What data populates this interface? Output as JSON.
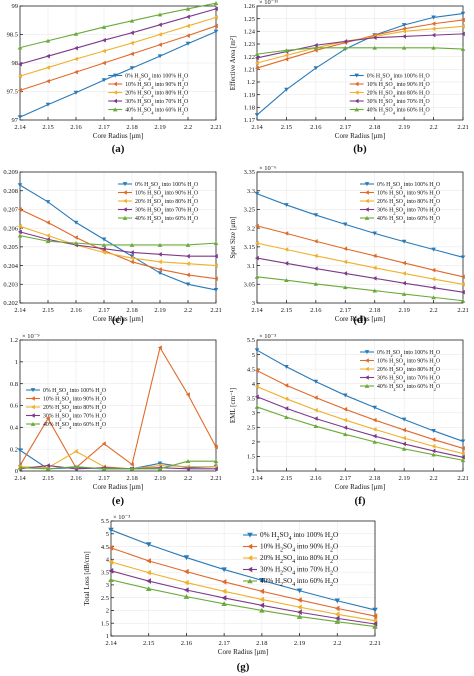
{
  "colors": [
    "#2a7ab8",
    "#e06a2a",
    "#f0b02a",
    "#7e3a8a",
    "#6aaa3a"
  ],
  "legend": [
    [
      "0% H",
      "2",
      "SO",
      "4",
      " into 100% H",
      "2",
      "O"
    ],
    [
      "10% H",
      "2",
      "SO",
      "4",
      " into 90% H",
      "2",
      "O"
    ],
    [
      "20% H",
      "2",
      "SO",
      "4",
      " into 80% H",
      "2",
      "O"
    ],
    [
      "30% H",
      "2",
      "SO",
      "4",
      " into 70% H",
      "2",
      "O"
    ],
    [
      "40% H",
      "2",
      "SO",
      "4",
      " into 60% H",
      "2",
      "O"
    ]
  ],
  "chart_data": [
    {
      "type": "line",
      "caption": "(a)",
      "xlabel": "Core Radius [μm]",
      "ylabel": "Relative Sensitivity",
      "multiplier": "",
      "xlim": [
        2.14,
        2.21
      ],
      "ylim": [
        97,
        99
      ],
      "xticks": [
        "2.14",
        "2.15",
        "2.16",
        "2.17",
        "2.18",
        "2.19",
        "2.2",
        "2.21"
      ],
      "yticks": [
        {
          "v": 97,
          "t": "97"
        },
        {
          "v": 97.5,
          "t": "97.5"
        },
        {
          "v": 98,
          "t": "98"
        },
        {
          "v": 98.5,
          "t": "98.5"
        },
        {
          "v": 99,
          "t": "99"
        }
      ],
      "legend_position": "bottom-right",
      "x": [
        2.14,
        2.15,
        2.16,
        2.17,
        2.18,
        2.19,
        2.2,
        2.21
      ],
      "series": [
        {
          "values": [
            97.05,
            97.27,
            97.48,
            97.7,
            97.91,
            98.12,
            98.34,
            98.55
          ]
        },
        {
          "values": [
            97.52,
            97.68,
            97.84,
            98.0,
            98.16,
            98.32,
            98.48,
            98.65
          ]
        },
        {
          "values": [
            97.77,
            97.92,
            98.07,
            98.21,
            98.35,
            98.5,
            98.65,
            98.8
          ]
        },
        {
          "values": [
            97.98,
            98.12,
            98.26,
            98.4,
            98.53,
            98.67,
            98.81,
            98.95
          ]
        },
        {
          "values": [
            98.27,
            98.39,
            98.51,
            98.63,
            98.74,
            98.85,
            98.95,
            99.05
          ]
        }
      ]
    },
    {
      "type": "line",
      "caption": "(b)",
      "xlabel": "Core Radius [μm]",
      "ylabel": "Effective Area [m²]",
      "multiplier": "× 10⁻¹¹",
      "xlim": [
        2.14,
        2.21
      ],
      "ylim": [
        1.17,
        1.26
      ],
      "xticks": [
        "2.14",
        "2.15",
        "2.16",
        "2.17",
        "2.18",
        "2.19",
        "2.2",
        "2.21"
      ],
      "yticks": [
        {
          "v": 1.17,
          "t": "1.17"
        },
        {
          "v": 1.18,
          "t": "1.18"
        },
        {
          "v": 1.19,
          "t": "1.19"
        },
        {
          "v": 1.2,
          "t": "1.2"
        },
        {
          "v": 1.21,
          "t": "1.21"
        },
        {
          "v": 1.22,
          "t": "1.22"
        },
        {
          "v": 1.23,
          "t": "1.23"
        },
        {
          "v": 1.24,
          "t": "1.24"
        },
        {
          "v": 1.25,
          "t": "1.25"
        },
        {
          "v": 1.26,
          "t": "1.26"
        }
      ],
      "legend_position": "bottom-right",
      "x": [
        2.14,
        2.15,
        2.16,
        2.17,
        2.18,
        2.19,
        2.2,
        2.21
      ],
      "series": [
        {
          "values": [
            1.174,
            1.194,
            1.211,
            1.226,
            1.237,
            1.245,
            1.251,
            1.254
          ]
        },
        {
          "values": [
            1.211,
            1.218,
            1.225,
            1.231,
            1.237,
            1.242,
            1.246,
            1.249
          ]
        },
        {
          "values": [
            1.215,
            1.221,
            1.227,
            1.232,
            1.236,
            1.24,
            1.242,
            1.244
          ]
        },
        {
          "values": [
            1.219,
            1.224,
            1.229,
            1.232,
            1.235,
            1.236,
            1.237,
            1.238
          ]
        },
        {
          "values": [
            1.222,
            1.225,
            1.227,
            1.227,
            1.227,
            1.227,
            1.227,
            1.226
          ]
        }
      ]
    },
    {
      "type": "line",
      "caption": "(c)",
      "xlabel": "Core Radius [μm]",
      "ylabel": "Numerical Aperture",
      "multiplier": "",
      "xlim": [
        2.14,
        2.21
      ],
      "ylim": [
        0.202,
        0.209
      ],
      "xticks": [
        "2.14",
        "2.15",
        "2.16",
        "2.17",
        "2.18",
        "2.19",
        "2.2",
        "2.21"
      ],
      "yticks": [
        {
          "v": 0.202,
          "t": "0.202"
        },
        {
          "v": 0.203,
          "t": "0.203"
        },
        {
          "v": 0.204,
          "t": "0.204"
        },
        {
          "v": 0.205,
          "t": "0.205"
        },
        {
          "v": 0.206,
          "t": "0.206"
        },
        {
          "v": 0.207,
          "t": "0.207"
        },
        {
          "v": 0.208,
          "t": "0.208"
        },
        {
          "v": 0.209,
          "t": "0.209"
        }
      ],
      "legend_position": "top-right",
      "x": [
        2.14,
        2.15,
        2.16,
        2.17,
        2.18,
        2.19,
        2.2,
        2.21
      ],
      "series": [
        {
          "values": [
            0.2083,
            0.2074,
            0.2063,
            0.2054,
            0.2045,
            0.2036,
            0.203,
            0.2027
          ]
        },
        {
          "values": [
            0.207,
            0.2063,
            0.2055,
            0.2048,
            0.2042,
            0.2038,
            0.2035,
            0.2033
          ]
        },
        {
          "values": [
            0.2061,
            0.2056,
            0.2051,
            0.2047,
            0.2044,
            0.2042,
            0.2041,
            0.204
          ]
        },
        {
          "values": [
            0.2058,
            0.2054,
            0.2051,
            0.2049,
            0.2047,
            0.2046,
            0.2045,
            0.2045
          ]
        },
        {
          "values": [
            0.2056,
            0.2053,
            0.2052,
            0.2051,
            0.2051,
            0.2051,
            0.2051,
            0.2052
          ]
        }
      ]
    },
    {
      "type": "line",
      "caption": "(d)",
      "xlabel": "Core Radius [μm]",
      "ylabel": "Spot Size [μm]",
      "multiplier": "× 10⁻⁶",
      "xlim": [
        2.14,
        2.21
      ],
      "ylim": [
        3.0,
        3.35
      ],
      "xticks": [
        "2.14",
        "2.15",
        "2.16",
        "2.17",
        "2.18",
        "2.19",
        "2.2",
        "2.21"
      ],
      "yticks": [
        {
          "v": 3.0,
          "t": "3"
        },
        {
          "v": 3.05,
          "t": "3.05"
        },
        {
          "v": 3.1,
          "t": "3.1"
        },
        {
          "v": 3.15,
          "t": "3.15"
        },
        {
          "v": 3.2,
          "t": "3.2"
        },
        {
          "v": 3.25,
          "t": "3.25"
        },
        {
          "v": 3.3,
          "t": "3.3"
        },
        {
          "v": 3.35,
          "t": "3.35"
        }
      ],
      "legend_position": "top-right",
      "x": [
        2.14,
        2.15,
        2.16,
        2.17,
        2.18,
        2.19,
        2.2,
        2.21
      ],
      "series": [
        {
          "values": [
            3.292,
            3.262,
            3.235,
            3.21,
            3.186,
            3.164,
            3.143,
            3.122
          ]
        },
        {
          "values": [
            3.206,
            3.186,
            3.165,
            3.145,
            3.126,
            3.107,
            3.088,
            3.07
          ]
        },
        {
          "values": [
            3.16,
            3.143,
            3.126,
            3.11,
            3.094,
            3.079,
            3.064,
            3.05
          ]
        },
        {
          "values": [
            3.12,
            3.106,
            3.092,
            3.079,
            3.066,
            3.053,
            3.041,
            3.029
          ]
        },
        {
          "values": [
            3.07,
            3.061,
            3.051,
            3.042,
            3.033,
            3.024,
            3.015,
            3.006
          ]
        }
      ]
    },
    {
      "type": "line",
      "caption": "(e)",
      "xlabel": "Core Radius [μm]",
      "ylabel": "Confinement Loss [dB/m]",
      "multiplier": "× 10⁻⁹",
      "xlim": [
        2.14,
        2.21
      ],
      "ylim": [
        0,
        1.2
      ],
      "xticks": [
        "2.14",
        "2.15",
        "2.16",
        "2.17",
        "2.18",
        "2.19",
        "2.2",
        "2.21"
      ],
      "yticks": [
        {
          "v": 0,
          "t": "0"
        },
        {
          "v": 0.2,
          "t": "0.2"
        },
        {
          "v": 0.4,
          "t": "0.4"
        },
        {
          "v": 0.6,
          "t": "0.6"
        },
        {
          "v": 0.8,
          "t": "0.8"
        },
        {
          "v": 1.0,
          "t": "1"
        },
        {
          "v": 1.2,
          "t": "1.2"
        }
      ],
      "legend_position": "left",
      "x": [
        2.14,
        2.15,
        2.16,
        2.17,
        2.18,
        2.19,
        2.2,
        2.21
      ],
      "series": [
        {
          "values": [
            0.19,
            0.02,
            0.03,
            0.02,
            0.02,
            0.07,
            0.03,
            0.04
          ]
        },
        {
          "values": [
            0.05,
            0.48,
            0.03,
            0.25,
            0.06,
            1.13,
            0.7,
            0.22
          ]
        },
        {
          "values": [
            0.04,
            0.03,
            0.18,
            0.04,
            0.02,
            0.05,
            0.04,
            0.04
          ]
        },
        {
          "values": [
            0.02,
            0.05,
            0.02,
            0.03,
            0.02,
            0.03,
            0.02,
            0.02
          ]
        },
        {
          "values": [
            0.03,
            0.02,
            0.04,
            0.02,
            0.02,
            0.02,
            0.09,
            0.09
          ]
        }
      ]
    },
    {
      "type": "line",
      "caption": "(f)",
      "xlabel": "Core Radius [μm]",
      "ylabel": "EML [cm⁻¹]",
      "multiplier": "× 10⁻³",
      "xlim": [
        2.14,
        2.21
      ],
      "ylim": [
        1,
        5.5
      ],
      "xticks": [
        "2.14",
        "2.15",
        "2.16",
        "2.17",
        "2.18",
        "2.19",
        "2.2",
        "2.21"
      ],
      "yticks": [
        {
          "v": 1,
          "t": "1"
        },
        {
          "v": 1.5,
          "t": "1.5"
        },
        {
          "v": 2,
          "t": "2"
        },
        {
          "v": 2.5,
          "t": "2.5"
        },
        {
          "v": 3,
          "t": "3"
        },
        {
          "v": 3.5,
          "t": "3.5"
        },
        {
          "v": 4,
          "t": "4"
        },
        {
          "v": 4.5,
          "t": "4.5"
        },
        {
          "v": 5,
          "t": "5"
        },
        {
          "v": 5.5,
          "t": "5.5"
        }
      ],
      "legend_position": "top-right",
      "x": [
        2.14,
        2.15,
        2.16,
        2.17,
        2.18,
        2.19,
        2.2,
        2.21
      ],
      "series": [
        {
          "values": [
            5.15,
            4.58,
            4.07,
            3.6,
            3.18,
            2.77,
            2.38,
            2.02
          ]
        },
        {
          "values": [
            4.45,
            3.94,
            3.52,
            3.12,
            2.75,
            2.41,
            2.08,
            1.78
          ]
        },
        {
          "values": [
            3.9,
            3.48,
            3.09,
            2.75,
            2.43,
            2.13,
            1.85,
            1.6
          ]
        },
        {
          "values": [
            3.55,
            3.15,
            2.8,
            2.49,
            2.2,
            1.93,
            1.69,
            1.47
          ]
        },
        {
          "values": [
            3.2,
            2.85,
            2.54,
            2.26,
            2.0,
            1.76,
            1.56,
            1.37
          ]
        }
      ]
    },
    {
      "type": "line",
      "caption": "(g)",
      "xlabel": "Core Radius [μm]",
      "ylabel": "Total Loss [dB/cm]",
      "multiplier": "× 10⁻³",
      "xlim": [
        2.14,
        2.21
      ],
      "ylim": [
        1,
        5.5
      ],
      "xticks": [
        "2.14",
        "2.15",
        "2.16",
        "2.17",
        "2.18",
        "2.19",
        "2.2",
        "2.21"
      ],
      "yticks": [
        {
          "v": 1,
          "t": "1"
        },
        {
          "v": 1.5,
          "t": "1.5"
        },
        {
          "v": 2,
          "t": "2"
        },
        {
          "v": 2.5,
          "t": "2.5"
        },
        {
          "v": 3,
          "t": "3"
        },
        {
          "v": 3.5,
          "t": "3.5"
        },
        {
          "v": 4,
          "t": "4"
        },
        {
          "v": 4.5,
          "t": "4.5"
        },
        {
          "v": 5,
          "t": "5"
        },
        {
          "v": 5.5,
          "t": "5.5"
        }
      ],
      "legend_position": "top-right",
      "x": [
        2.14,
        2.15,
        2.16,
        2.17,
        2.18,
        2.19,
        2.2,
        2.21
      ],
      "series": [
        {
          "values": [
            5.15,
            4.58,
            4.07,
            3.6,
            3.18,
            2.77,
            2.38,
            2.02
          ]
        },
        {
          "values": [
            4.45,
            3.94,
            3.52,
            3.12,
            2.75,
            2.41,
            2.08,
            1.78
          ]
        },
        {
          "values": [
            3.9,
            3.48,
            3.09,
            2.75,
            2.43,
            2.13,
            1.85,
            1.6
          ]
        },
        {
          "values": [
            3.55,
            3.15,
            2.8,
            2.49,
            2.2,
            1.93,
            1.69,
            1.47
          ]
        },
        {
          "values": [
            3.2,
            2.85,
            2.54,
            2.26,
            2.0,
            1.76,
            1.56,
            1.37
          ]
        }
      ]
    }
  ]
}
